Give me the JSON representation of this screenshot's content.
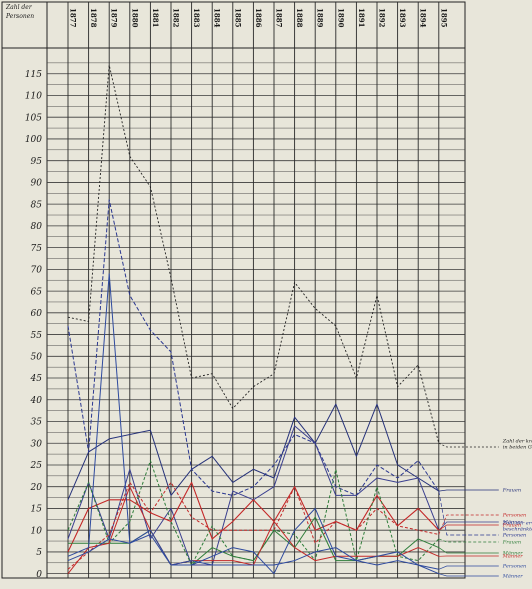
{
  "header": {
    "line1": "Zahl der",
    "line2": "Personen"
  },
  "chart_data": {
    "type": "line",
    "x": [
      "1877",
      "1878",
      "1879",
      "1880",
      "1881",
      "1882",
      "1883",
      "1884",
      "1885",
      "1886",
      "1887",
      "1888",
      "1889",
      "1890",
      "1891",
      "1892",
      "1893",
      "1894",
      "1895"
    ],
    "yticks": [
      0,
      5,
      10,
      15,
      20,
      25,
      30,
      35,
      40,
      45,
      50,
      55,
      60,
      65,
      70,
      75,
      80,
      85,
      90,
      95,
      100,
      105,
      110,
      115
    ],
    "ylim": [
      -1,
      120
    ],
    "grid": true,
    "series": [
      {
        "name": "Zahl der kranken Personen in beiden Geschlechtern",
        "legend": "Zahl der kranken Personen\nin beiden Geschlechtern",
        "color": "#222222",
        "dash": "2,2",
        "width": 0.9,
        "values": [
          59,
          58,
          117,
          96,
          89,
          68,
          45,
          46,
          38,
          43,
          46,
          67,
          61,
          57,
          45,
          64,
          43,
          48,
          30
        ]
      },
      {
        "name": "Frauen",
        "legend": "Frauen",
        "color": "#26327a",
        "dash": "",
        "width": 1.0,
        "values": [
          17,
          28,
          31,
          32,
          33,
          18,
          24,
          27,
          21,
          24,
          22,
          36,
          30,
          39,
          27,
          39,
          25,
          22,
          19
        ]
      },
      {
        "name": "Zahl der erwerbsbeschränkten Personen",
        "legend": "Zahl der erwerbs-\nbeschränkten\nPersonen",
        "color": "#2a3790",
        "dash": "4,2",
        "width": 1.0,
        "values": [
          57,
          28,
          86,
          64,
          56,
          51,
          24,
          19,
          18,
          20,
          25,
          32,
          30,
          20,
          18,
          25,
          22,
          26,
          19
        ]
      },
      {
        "name": "Männer",
        "legend": "Männer",
        "color": "#3a3f8f",
        "dash": "",
        "width": 1.0,
        "values": [
          8,
          21,
          8,
          24,
          8,
          15,
          2,
          2,
          19,
          17,
          20,
          34,
          30,
          18,
          18,
          22,
          21,
          22,
          10
        ]
      },
      {
        "name": "Frauen (rot)",
        "legend": "Frauen",
        "color": "#c42828",
        "dash": "",
        "width": 1.1,
        "values": [
          5,
          15,
          17,
          17,
          14,
          12,
          21,
          8,
          12,
          17,
          12,
          20,
          10,
          12,
          10,
          18,
          11,
          15,
          10
        ]
      },
      {
        "name": "Personen (rot)",
        "legend": "Personen",
        "color": "#c42828",
        "dash": "3,2",
        "width": 1.0,
        "values": [
          1,
          5,
          9,
          21,
          14,
          21,
          13,
          10,
          10,
          10,
          10,
          20,
          7,
          12,
          10,
          15,
          11,
          10,
          9
        ]
      },
      {
        "name": "Frauen (grün)",
        "legend": "Frauen",
        "color": "#2e7d3a",
        "dash": "3,2",
        "width": 1.0,
        "values": [
          10,
          21,
          7,
          12,
          26,
          12,
          2,
          11,
          4,
          3,
          10,
          9,
          3,
          24,
          3,
          20,
          4,
          3,
          8
        ]
      },
      {
        "name": "Männer (grün)",
        "legend": "Männer",
        "color": "#2e7d3a",
        "dash": "",
        "width": 1.0,
        "values": [
          7,
          7,
          7,
          7,
          10,
          2,
          2,
          6,
          4,
          3,
          10,
          6,
          13,
          3,
          3,
          4,
          4,
          8,
          6
        ]
      },
      {
        "name": "Männer (rot)",
        "legend": "Männer",
        "color": "#c42828",
        "dash": "",
        "width": 1.0,
        "values": [
          0,
          6,
          7,
          20,
          10,
          2,
          3,
          3,
          3,
          2,
          12,
          6,
          3,
          4,
          4,
          4,
          4,
          6,
          4
        ]
      },
      {
        "name": "Personen (blau)",
        "legend": "Personen",
        "color": "#2e4a9e",
        "dash": "",
        "width": 1.0,
        "values": [
          4,
          6,
          69,
          7,
          10,
          2,
          2,
          4,
          6,
          5,
          0,
          10,
          15,
          4,
          3,
          4,
          5,
          2,
          1
        ]
      },
      {
        "name": "Männer (blau)",
        "legend": "Männer",
        "color": "#2e4a9e",
        "dash": "",
        "width": 1.0,
        "values": [
          3,
          5,
          8,
          7,
          9,
          2,
          3,
          2,
          2,
          2,
          2,
          3,
          5,
          6,
          3,
          2,
          3,
          2,
          0
        ]
      }
    ]
  }
}
